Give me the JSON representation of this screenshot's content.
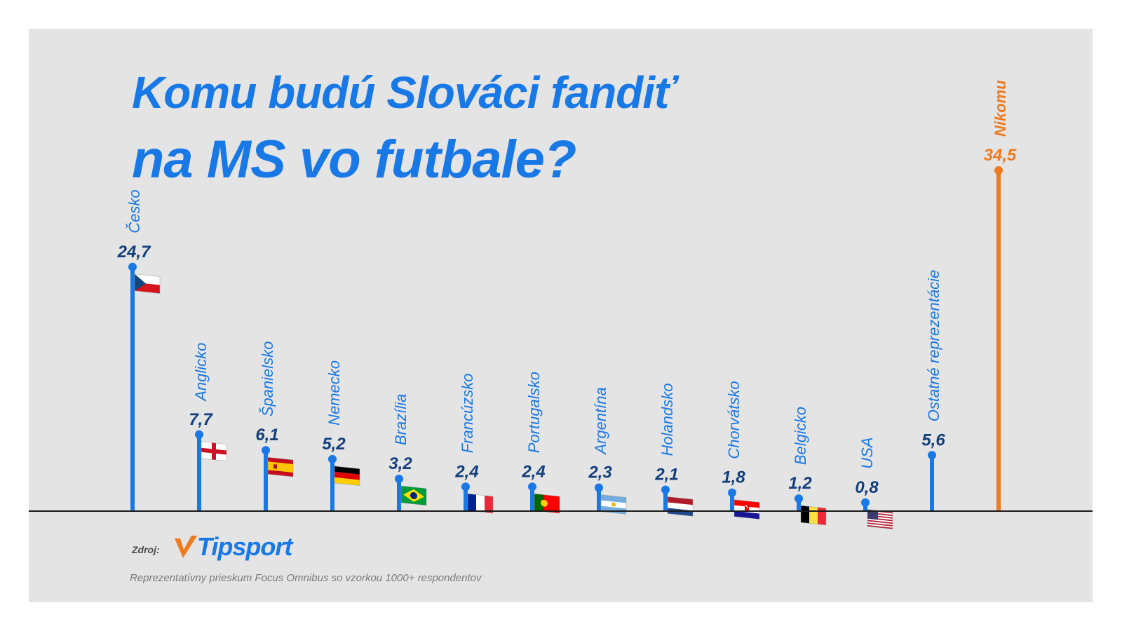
{
  "title_line1": "Komu budú Slováci fandiť",
  "title_line2": "na MS vo futbale?",
  "source_label": "Zdroj:",
  "source_brand": "Tipsport",
  "footnote": "Reprezentatívny prieskum Focus Omnibus so vzorkou 1000+ respondentov",
  "colors": {
    "accent_blue": "#1878e6",
    "value_navy": "#123f7c",
    "highlight_orange": "#f07a1e",
    "background": "#e4e4e4",
    "axis": "#1a1a1a"
  },
  "chart_data": {
    "type": "bar",
    "style": "lollipop",
    "title": "Komu budú Slováci fandiť na MS vo futbale?",
    "xlabel": "",
    "ylabel": "",
    "ylim": [
      0,
      34.5
    ],
    "grid": false,
    "legend": "none",
    "categories": [
      "Česko",
      "Anglicko",
      "Španielsko",
      "Nemecko",
      "Brazília",
      "Francúzsko",
      "Portugalsko",
      "Argentína",
      "Holandsko",
      "Chorvátsko",
      "Belgicko",
      "USA",
      "Ostatné reprezentácie",
      "Nikomu"
    ],
    "values": [
      24.7,
      7.7,
      6.1,
      5.2,
      3.2,
      2.4,
      2.4,
      2.3,
      2.1,
      1.8,
      1.2,
      0.8,
      5.6,
      34.5
    ],
    "value_labels": [
      "24,7",
      "7,7",
      "6,1",
      "5,2",
      "3,2",
      "2,4",
      "2,4",
      "2,3",
      "2,1",
      "1,8",
      "1,2",
      "0,8",
      "5,6",
      "34,5"
    ],
    "flags": [
      "czech-flag",
      "england-flag",
      "spain-flag",
      "germany-flag",
      "brazil-flag",
      "france-flag",
      "portugal-flag",
      "argentina-flag",
      "netherlands-flag",
      "croatia-flag",
      "belgium-flag",
      "usa-flag",
      "",
      ""
    ],
    "highlight": [
      "Nikomu"
    ]
  }
}
